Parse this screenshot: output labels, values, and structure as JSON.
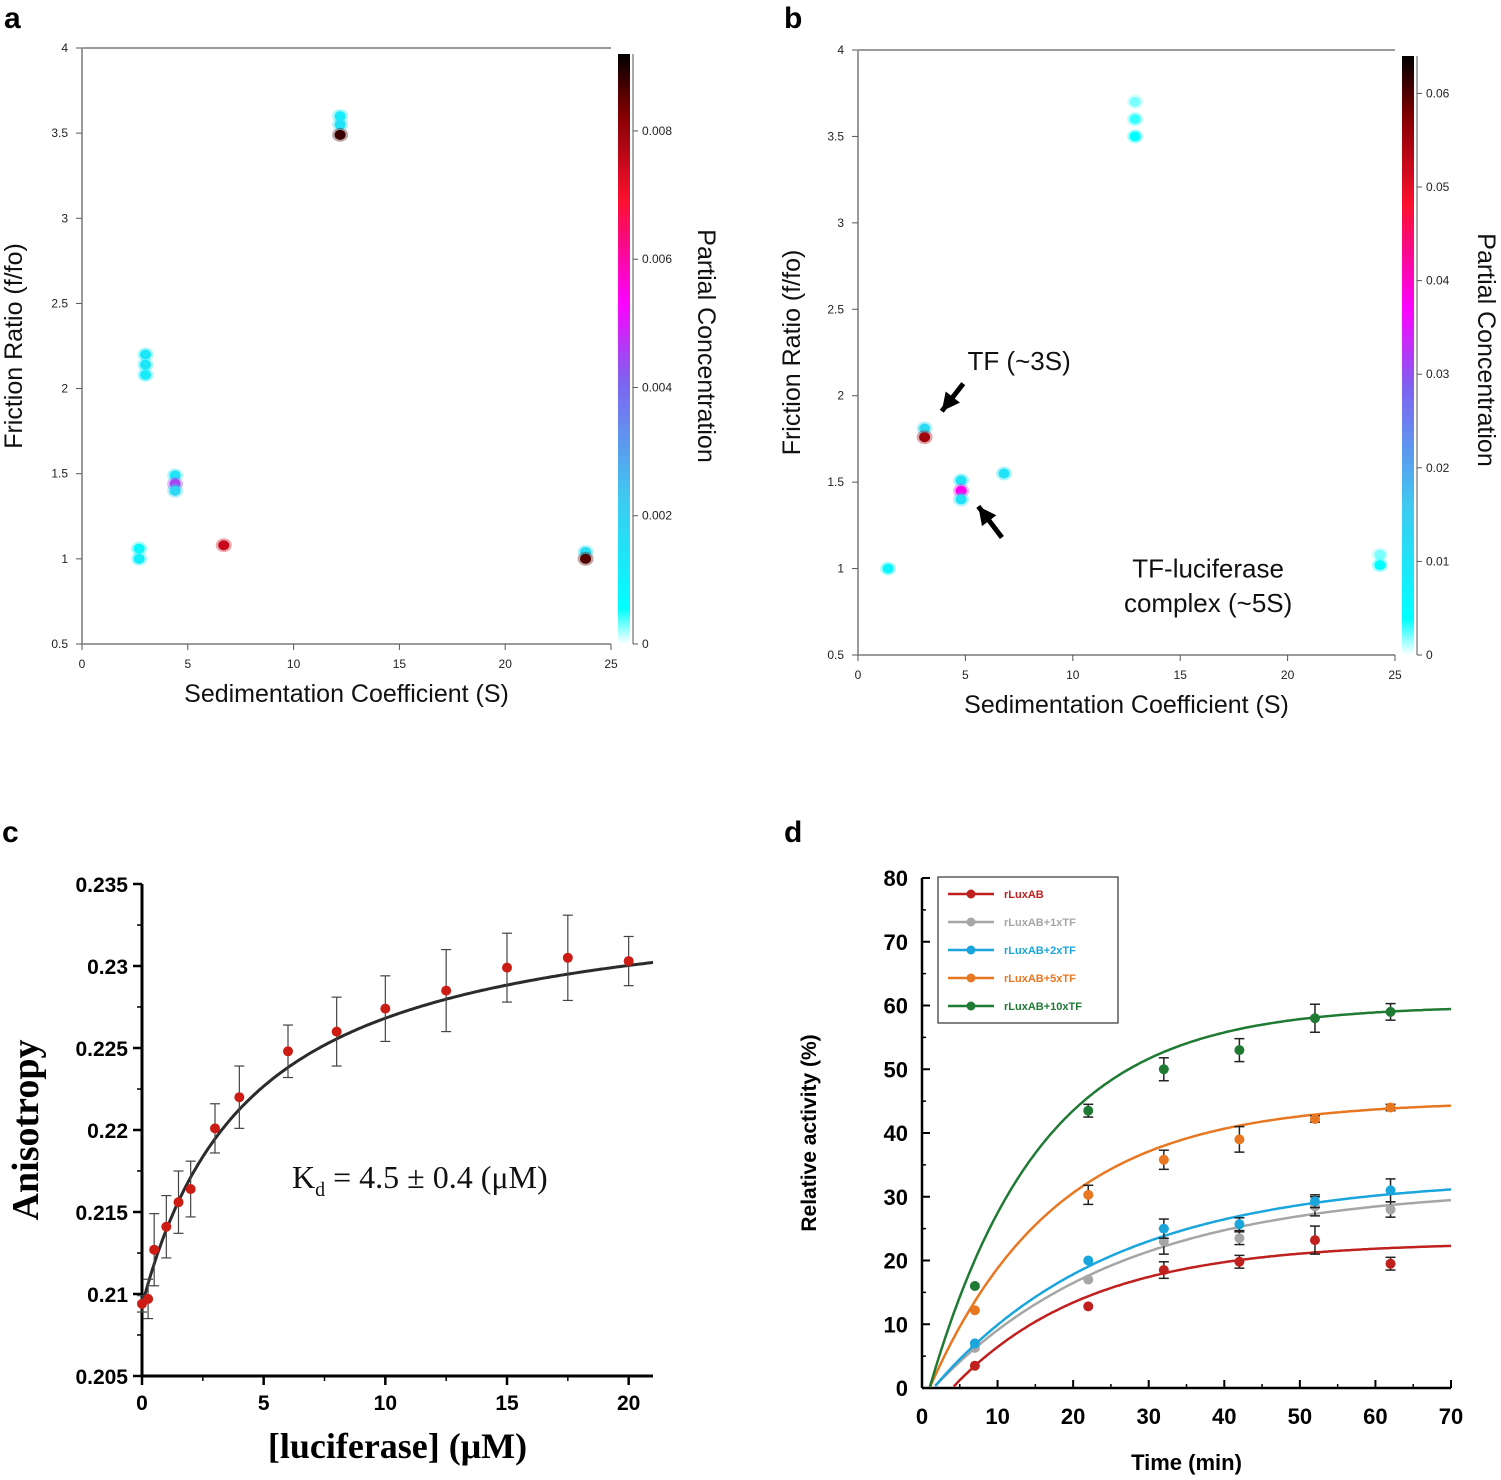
{
  "panel_letters": [
    "a",
    "b",
    "c",
    "d"
  ],
  "chart_data": [
    {
      "id": "a",
      "type": "heatmap",
      "title": "",
      "xlabel": "Sedimentation Coefficient (S)",
      "ylabel": "Friction Ratio (f/fo)",
      "xlim": [
        0,
        25
      ],
      "ylim": [
        0.5,
        4
      ],
      "xticks": [
        "0",
        "5",
        "10",
        "15",
        "20",
        "25"
      ],
      "yticks": [
        "0.5",
        "1",
        "1.5",
        "2",
        "2.5",
        "3",
        "3.5",
        "4"
      ],
      "colorbar": {
        "label": "Partial Concentration",
        "range": [
          0,
          0.0092
        ],
        "ticks": [
          "0",
          "0.002",
          "0.004",
          "0.006",
          "0.008"
        ]
      },
      "spots": [
        {
          "s": 12.2,
          "f": 3.6,
          "c": 0.0012
        },
        {
          "s": 12.2,
          "f": 3.55,
          "c": 0.0015
        },
        {
          "s": 12.2,
          "f": 3.49,
          "c": 0.0088
        },
        {
          "s": 3.0,
          "f": 2.2,
          "c": 0.0013
        },
        {
          "s": 3.0,
          "f": 2.14,
          "c": 0.0013
        },
        {
          "s": 3.0,
          "f": 2.08,
          "c": 0.0012
        },
        {
          "s": 4.4,
          "f": 1.49,
          "c": 0.0014
        },
        {
          "s": 4.4,
          "f": 1.44,
          "c": 0.0045
        },
        {
          "s": 4.4,
          "f": 1.4,
          "c": 0.0018
        },
        {
          "s": 6.7,
          "f": 1.08,
          "c": 0.0075
        },
        {
          "s": 2.7,
          "f": 1.06,
          "c": 0.0008
        },
        {
          "s": 2.7,
          "f": 1.0,
          "c": 0.0011
        },
        {
          "s": 23.8,
          "f": 1.04,
          "c": 0.0016
        },
        {
          "s": 23.8,
          "f": 1.0,
          "c": 0.0086
        }
      ]
    },
    {
      "id": "b",
      "type": "heatmap",
      "title": "",
      "xlabel": "Sedimentation Coefficient (S)",
      "ylabel": "Friction Ratio (f/fo)",
      "xlim": [
        0,
        25
      ],
      "ylim": [
        0.5,
        4
      ],
      "xticks": [
        "0",
        "5",
        "10",
        "15",
        "20",
        "25"
      ],
      "yticks": [
        "0.5",
        "1",
        "1.5",
        "2",
        "2.5",
        "3",
        "3.5",
        "4"
      ],
      "colorbar": {
        "label": "Partial Concentration",
        "range": [
          0,
          0.064
        ],
        "ticks": [
          "0",
          "0.01",
          "0.02",
          "0.03",
          "0.04",
          "0.05",
          "0.06"
        ]
      },
      "annotations": [
        {
          "text": "TF (~3S)",
          "s": 7.5,
          "f": 2.2
        },
        {
          "text": "TF-luciferase",
          "s": 16.3,
          "f": 1.0
        },
        {
          "text": "complex (~5S)",
          "s": 16.3,
          "f": 0.8
        }
      ],
      "arrows": [
        {
          "from": [
            4.9,
            2.07
          ],
          "to": [
            3.9,
            1.91
          ]
        },
        {
          "from": [
            6.7,
            1.18
          ],
          "to": [
            5.6,
            1.36
          ]
        }
      ],
      "spots": [
        {
          "s": 12.9,
          "f": 3.7,
          "c": 0.002
        },
        {
          "s": 12.9,
          "f": 3.6,
          "c": 0.003
        },
        {
          "s": 12.9,
          "f": 3.5,
          "c": 0.004
        },
        {
          "s": 3.1,
          "f": 1.81,
          "c": 0.012
        },
        {
          "s": 3.1,
          "f": 1.76,
          "c": 0.055
        },
        {
          "s": 4.8,
          "f": 1.51,
          "c": 0.01
        },
        {
          "s": 4.8,
          "f": 1.45,
          "c": 0.038
        },
        {
          "s": 4.8,
          "f": 1.4,
          "c": 0.01
        },
        {
          "s": 6.8,
          "f": 1.55,
          "c": 0.01
        },
        {
          "s": 1.4,
          "f": 1.0,
          "c": 0.006
        },
        {
          "s": 24.3,
          "f": 1.08,
          "c": 0.002
        },
        {
          "s": 24.3,
          "f": 1.02,
          "c": 0.004
        }
      ]
    },
    {
      "id": "c",
      "type": "scatter",
      "title": "",
      "xlabel": "[luciferase] (μM)",
      "ylabel": "Anisotropy",
      "xlim": [
        0,
        21
      ],
      "ylim": [
        0.205,
        0.235
      ],
      "xticks": [
        "0",
        "5",
        "10",
        "15",
        "20"
      ],
      "yticks": [
        "0.205",
        "0.21",
        "0.215",
        "0.22",
        "0.225",
        "0.23",
        "0.235"
      ],
      "annotation": {
        "main": "K",
        "sub": "d",
        "rest": " = 4.5 ± 0.4 (μM)"
      },
      "fit": {
        "model": "hyperbolic",
        "y0": 0.2093,
        "ymax": 0.0254,
        "kd": 4.5
      },
      "points": [
        {
          "x": 0,
          "y": 0.2094,
          "err": 0.0005
        },
        {
          "x": 0.25,
          "y": 0.2097,
          "err": 0.0012
        },
        {
          "x": 0.5,
          "y": 0.2127,
          "err": 0.0022
        },
        {
          "x": 1.0,
          "y": 0.2141,
          "err": 0.0019
        },
        {
          "x": 1.5,
          "y": 0.2156,
          "err": 0.0019
        },
        {
          "x": 2.0,
          "y": 0.2164,
          "err": 0.0017
        },
        {
          "x": 3.0,
          "y": 0.2201,
          "err": 0.0015
        },
        {
          "x": 4.0,
          "y": 0.222,
          "err": 0.0019
        },
        {
          "x": 6.0,
          "y": 0.2248,
          "err": 0.0016
        },
        {
          "x": 8.0,
          "y": 0.226,
          "err": 0.0021
        },
        {
          "x": 10.0,
          "y": 0.2274,
          "err": 0.002
        },
        {
          "x": 12.5,
          "y": 0.2285,
          "err": 0.0025
        },
        {
          "x": 15.0,
          "y": 0.2299,
          "err": 0.0021
        },
        {
          "x": 17.5,
          "y": 0.2305,
          "err": 0.0026
        },
        {
          "x": 20.0,
          "y": 0.2303,
          "err": 0.0015
        }
      ]
    },
    {
      "id": "d",
      "type": "scatter",
      "title": "",
      "xlabel": "Time (min)",
      "ylabel": "Relative activity (%)",
      "xlim": [
        0,
        70
      ],
      "ylim": [
        0,
        80
      ],
      "xticks": [
        "0",
        "10",
        "20",
        "30",
        "40",
        "50",
        "60",
        "70"
      ],
      "yticks": [
        "0",
        "10",
        "20",
        "30",
        "40",
        "50",
        "60",
        "70",
        "80"
      ],
      "legend_position": "top-left",
      "series": [
        {
          "name": "rLuxAB",
          "color": "#c0201e",
          "fit": {
            "a": 22.9,
            "k": 0.055,
            "t0": 4
          },
          "points": [
            [
              7,
              3.5,
              0
            ],
            [
              22,
              12.8,
              0
            ],
            [
              32,
              18.5,
              1.3
            ],
            [
              42,
              19.8,
              1.0
            ],
            [
              52,
              23.2,
              2.2
            ],
            [
              62,
              19.5,
              1.0
            ]
          ]
        },
        {
          "name": "rLuxAB+1xTF",
          "color": "#a6a6a6",
          "fit": {
            "a": 31.5,
            "k": 0.04,
            "t0": 1.5
          },
          "points": [
            [
              7,
              6.3,
              0
            ],
            [
              22,
              17.0,
              0
            ],
            [
              32,
              23.0,
              2.0
            ],
            [
              42,
              23.5,
              1.0
            ],
            [
              52,
              28.5,
              1.5
            ],
            [
              62,
              28.0,
              1.2
            ]
          ]
        },
        {
          "name": "rLuxAB+2xTF",
          "color": "#1aa6dc",
          "fit": {
            "a": 33.0,
            "k": 0.042,
            "t0": 1.5
          },
          "points": [
            [
              7,
              7.0,
              0
            ],
            [
              22,
              20.0,
              0
            ],
            [
              32,
              25.0,
              1.5
            ],
            [
              42,
              25.7,
              1.0
            ],
            [
              52,
              29.3,
              1.0
            ],
            [
              62,
              31.0,
              1.8
            ]
          ]
        },
        {
          "name": "rLuxAB+5xTF",
          "color": "#e87722",
          "fit": {
            "a": 45.0,
            "k": 0.06,
            "t0": 1
          },
          "points": [
            [
              7,
              12.2,
              0
            ],
            [
              22,
              30.3,
              1.5
            ],
            [
              32,
              35.8,
              1.5
            ],
            [
              42,
              39.0,
              2.0
            ],
            [
              52,
              42.2,
              0.5
            ],
            [
              62,
              44.0,
              0.5
            ]
          ]
        },
        {
          "name": "rLuxAB+10xTF",
          "color": "#1f7a34",
          "fit": {
            "a": 60.0,
            "k": 0.068,
            "t0": 1
          },
          "points": [
            [
              7,
              16.0,
              0
            ],
            [
              22,
              43.5,
              1.0
            ],
            [
              32,
              50.0,
              1.8
            ],
            [
              42,
              53.0,
              1.8
            ],
            [
              52,
              58.0,
              2.2
            ],
            [
              62,
              59.0,
              1.3
            ]
          ]
        }
      ]
    }
  ]
}
